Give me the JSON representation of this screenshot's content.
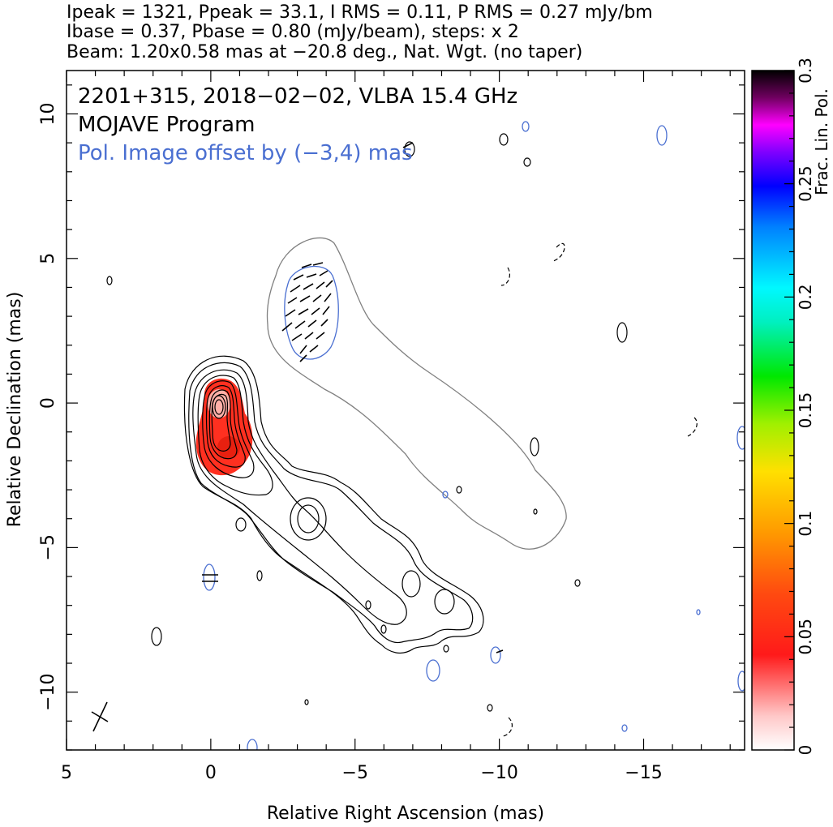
{
  "header": {
    "line1": "Ipeak = 1321, Ppeak = 33.1, I RMS = 0.11, P RMS = 0.27 mJy/bm",
    "line2": "Ibase = 0.37, Pbase = 0.80 (mJy/beam), steps: x 2",
    "line3": "Beam: 1.20x0.58 mas at −20.8 deg., Nat. Wgt. (no taper)"
  },
  "annotations": {
    "source": "2201+315, 2018−02−02, VLBA 15.4 GHz",
    "program": "MOJAVE Program",
    "pol_offset": "Pol. Image offset by (−3,4) mas"
  },
  "colors": {
    "total_intensity_contours": "#000000",
    "polarization_contours": "#4a6fd1",
    "offset_outline": "#808080",
    "pol_annotation": "#4a6fd1",
    "frac_pol_low": "#ff2a1a"
  },
  "chart_data": {
    "type": "contour",
    "xlabel": "Relative Right Ascension (mas)",
    "ylabel": "Relative Declination (mas)",
    "xlim": [
      5,
      -18.5
    ],
    "ylim": [
      -12,
      11.5
    ],
    "x_ticks": [
      {
        "value": 5,
        "label": "5"
      },
      {
        "value": 0,
        "label": "0"
      },
      {
        "value": -5,
        "label": "−5"
      },
      {
        "value": -10,
        "label": "−10"
      },
      {
        "value": -15,
        "label": "−15"
      }
    ],
    "y_ticks": [
      {
        "value": -10,
        "label": "−10"
      },
      {
        "value": -5,
        "label": "−5"
      },
      {
        "value": 0,
        "label": "0"
      },
      {
        "value": 5,
        "label": "5"
      },
      {
        "value": 10,
        "label": "10"
      }
    ],
    "colorbar": {
      "label": "Frac. Lin. Pol.",
      "range": [
        0,
        0.3
      ],
      "ticks": [
        {
          "value": 0,
          "label": "0"
        },
        {
          "value": 0.05,
          "label": "0.05"
        },
        {
          "value": 0.1,
          "label": "0.1"
        },
        {
          "value": 0.15,
          "label": "0.15"
        },
        {
          "value": 0.2,
          "label": "0.2"
        },
        {
          "value": 0.25,
          "label": "0.25"
        },
        {
          "value": 0.3,
          "label": "0.3"
        }
      ]
    },
    "core_position": [
      0,
      0
    ],
    "peak_intensity_mJy_per_beam": 1321,
    "peak_polarization_mJy_per_beam": 33.1,
    "intensity_base_mJy_per_beam": 0.37,
    "polarization_base_mJy_per_beam": 0.8,
    "contour_step_factor": 2,
    "polarization_offset_mas": [
      -3,
      4
    ],
    "beam": {
      "major_mas": 1.2,
      "minor_mas": 0.58,
      "pa_deg": -20.8,
      "center": [
        3.9,
        -11.1
      ]
    },
    "jet_features": [
      {
        "name": "core",
        "x": 0.0,
        "y": -0.3
      },
      {
        "name": "knot",
        "x": -3.3,
        "y": -4.2
      },
      {
        "name": "knot",
        "x": -6.8,
        "y": -6.3
      },
      {
        "name": "knot",
        "x": -8.0,
        "y": -7.0
      }
    ]
  }
}
